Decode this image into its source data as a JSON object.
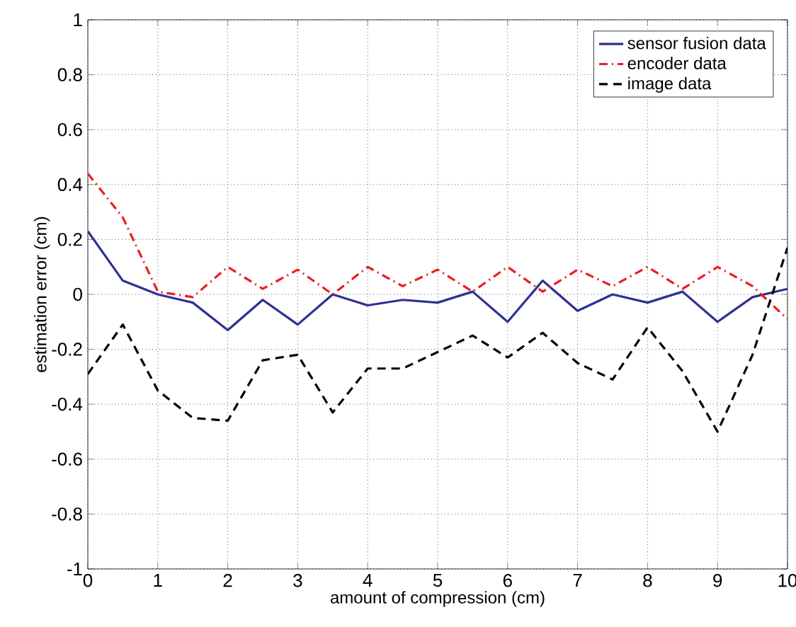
{
  "chart_data": {
    "type": "line",
    "xlabel": "amount of compression (cm)",
    "ylabel": "estimation error (cm)",
    "x": [
      0,
      0.5,
      1,
      1.5,
      2,
      2.5,
      3,
      3.5,
      4,
      4.5,
      5,
      5.5,
      6,
      6.5,
      7,
      7.5,
      8,
      8.5,
      9,
      9.5,
      10
    ],
    "series": [
      {
        "name": "sensor fusion data",
        "color": "#2e3192",
        "line_style": "solid",
        "values": [
          0.23,
          0.05,
          0,
          -0.03,
          -0.13,
          -0.02,
          -0.11,
          0,
          -0.04,
          -0.02,
          -0.03,
          0.01,
          -0.1,
          0.05,
          -0.06,
          0,
          -0.03,
          0.01,
          -0.1,
          -0.01,
          0.02
        ]
      },
      {
        "name": "encoder data",
        "color": "#ed1c24",
        "line_style": "dashdot",
        "values": [
          0.44,
          0.28,
          0.01,
          -0.01,
          0.1,
          0.02,
          0.09,
          0,
          0.1,
          0.03,
          0.09,
          0.01,
          0.1,
          0.01,
          0.09,
          0.03,
          0.1,
          0.02,
          0.1,
          0.03,
          -0.09
        ]
      },
      {
        "name": "image data",
        "color": "#000000",
        "line_style": "dashed",
        "values": [
          -0.29,
          -0.11,
          -0.35,
          -0.45,
          -0.46,
          -0.24,
          -0.22,
          -0.43,
          -0.27,
          -0.27,
          -0.21,
          -0.15,
          -0.23,
          -0.14,
          -0.25,
          -0.31,
          -0.12,
          -0.28,
          -0.5,
          -0.22,
          0.17
        ]
      }
    ],
    "xlim": [
      0,
      10
    ],
    "ylim": [
      -1,
      1
    ],
    "xticks": [
      0,
      1,
      2,
      3,
      4,
      5,
      6,
      7,
      8,
      9,
      10
    ],
    "yticks": [
      -1,
      -0.8,
      -0.6,
      -0.4,
      -0.2,
      0,
      0.2,
      0.4,
      0.6,
      0.8,
      1
    ],
    "grid": true,
    "legend": "top right",
    "marker": "none"
  }
}
